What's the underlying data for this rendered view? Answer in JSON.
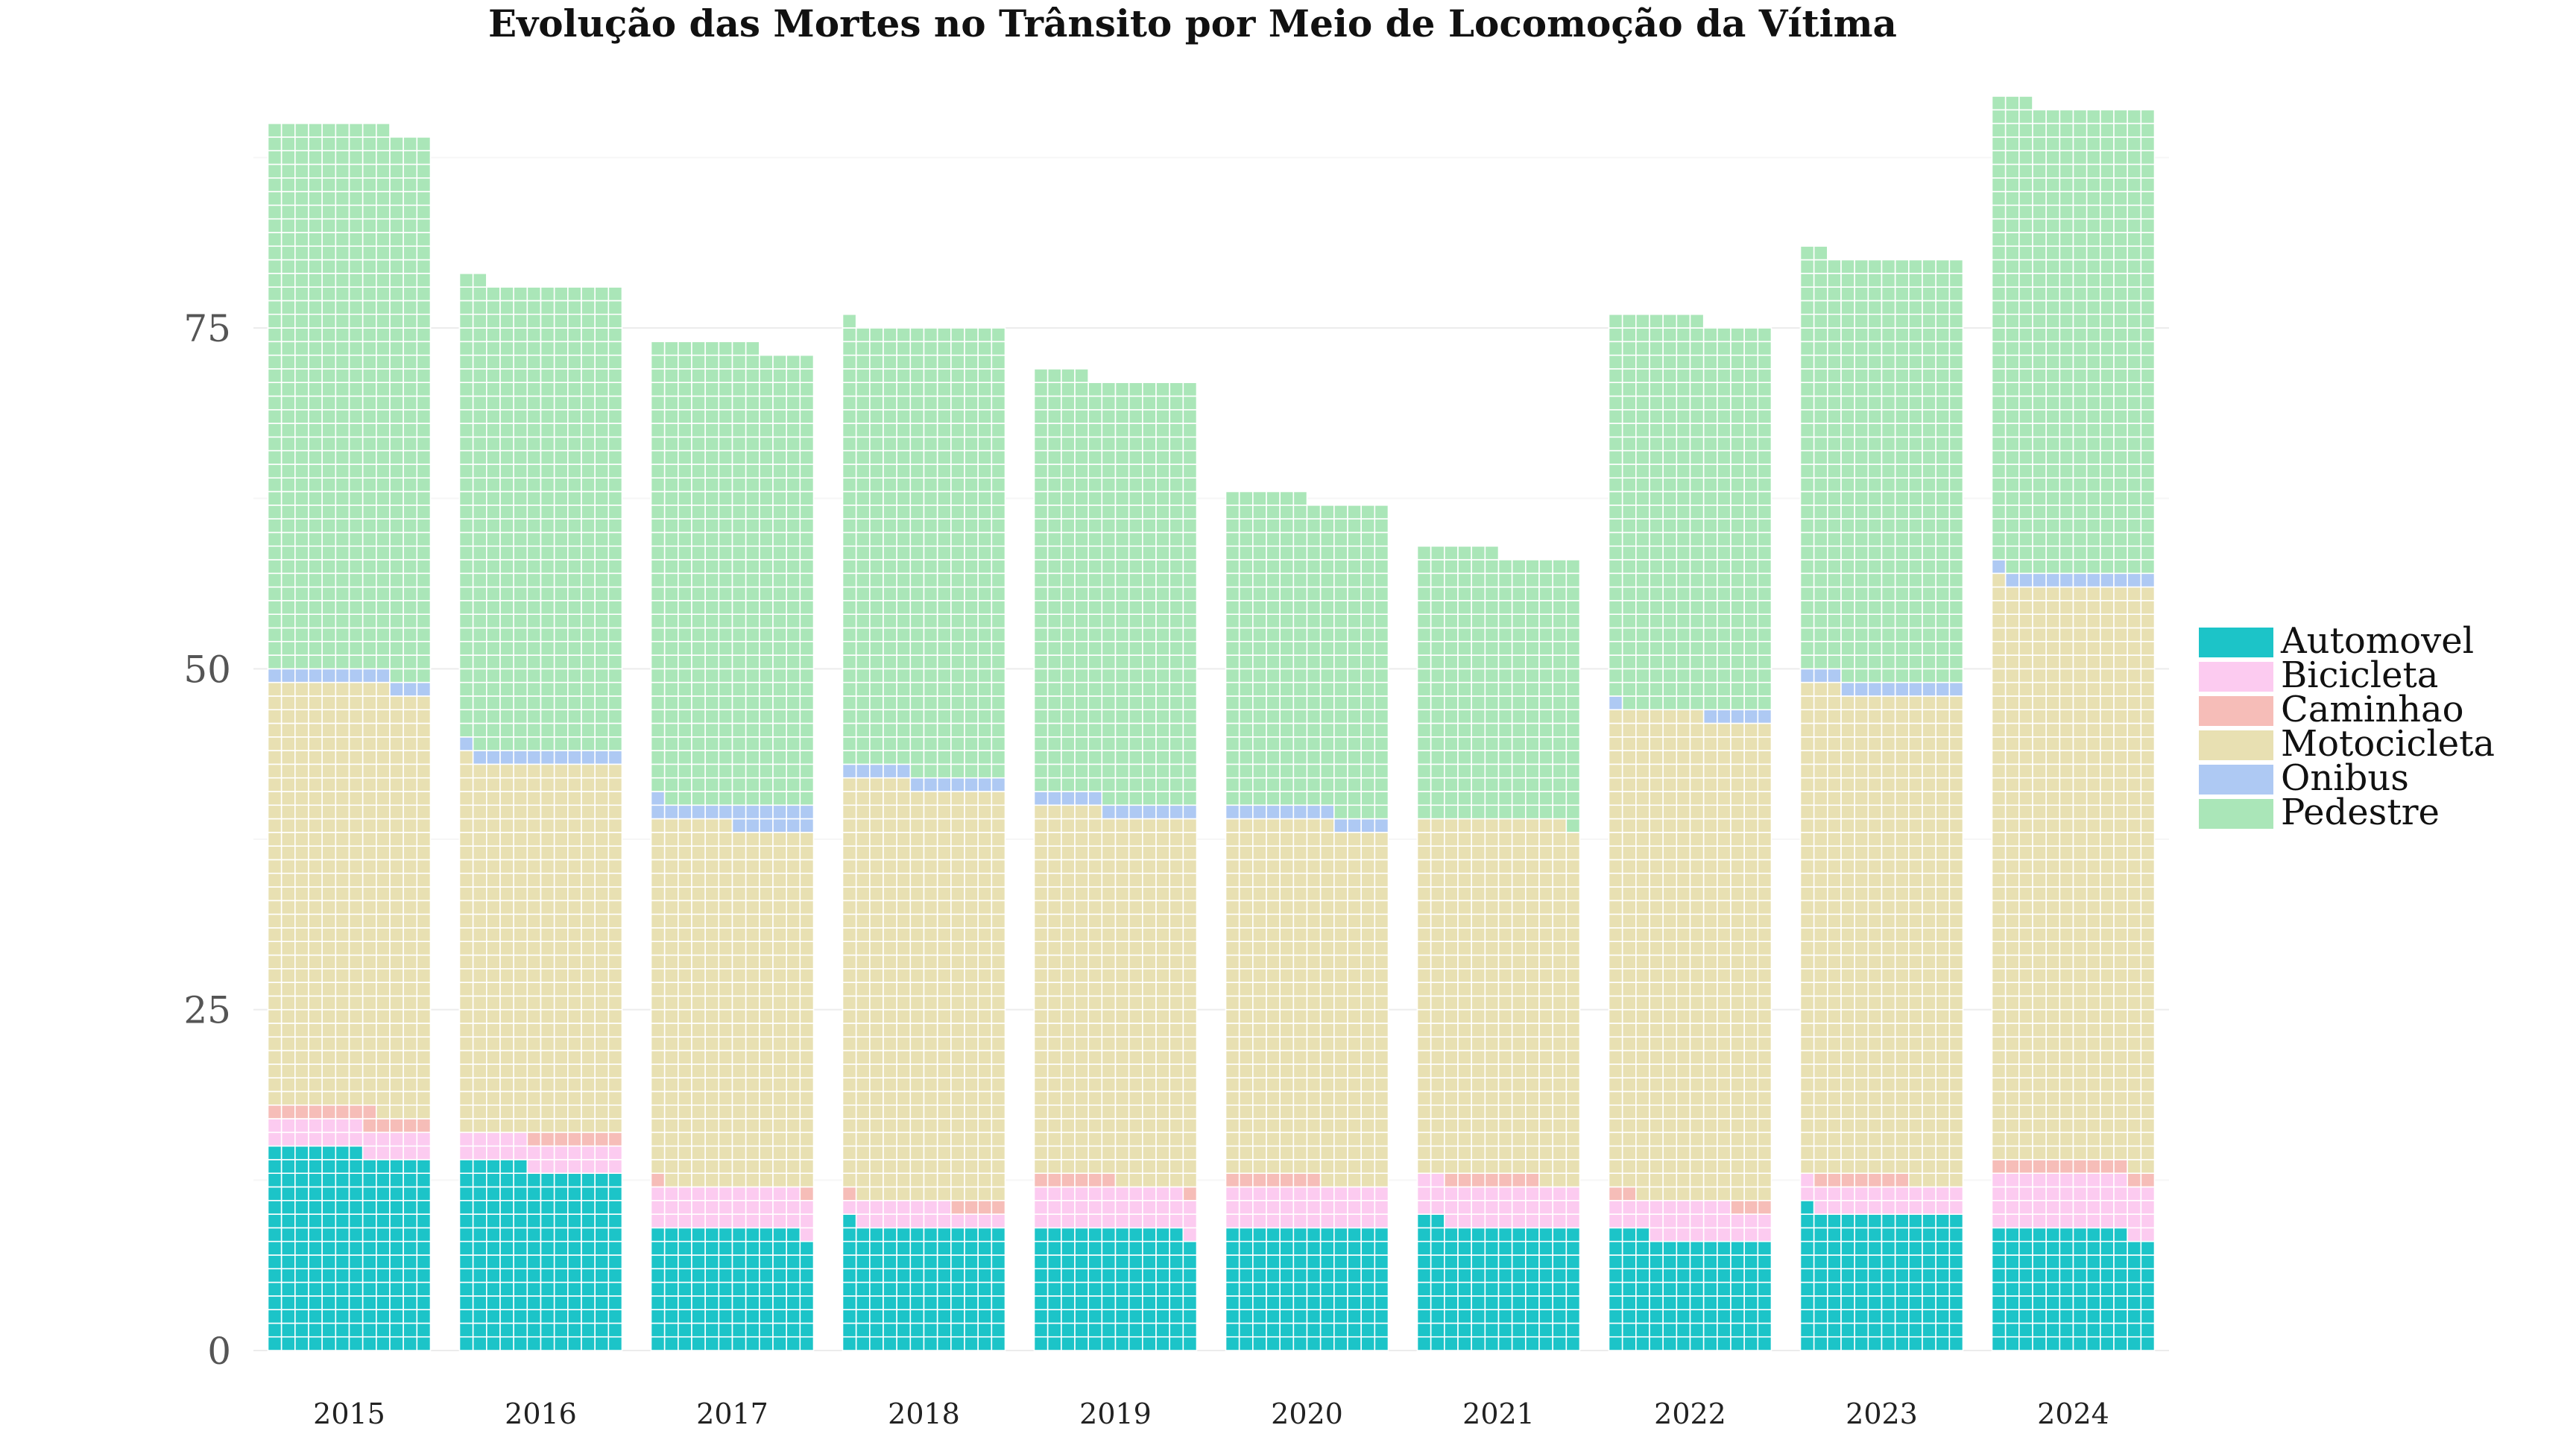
{
  "chart_data": {
    "type": "bar",
    "subtype": "stacked waffle (each cell = 1 death)",
    "title": "Evolução das Mortes no Trânsito por Meio de Locomoção da Vítima",
    "xlabel": "",
    "ylabel": "",
    "ylim": [
      0,
      90
    ],
    "yticks": [
      0,
      25,
      50,
      75
    ],
    "grid": true,
    "legend_position": "right",
    "categories": [
      "2015",
      "2016",
      "2017",
      "2018",
      "2019",
      "2020",
      "2021",
      "2022",
      "2023",
      "2024"
    ],
    "series": [
      {
        "name": "Automovel",
        "color": "#1cc4c8",
        "values": [
          175,
          161,
          107,
          109,
          107,
          108,
          110,
          99,
          121,
          106
        ]
      },
      {
        "name": "Bicicleta",
        "color": "#fccbf0",
        "values": [
          24,
          24,
          36,
          19,
          36,
          36,
          36,
          30,
          24,
          48
        ]
      },
      {
        "name": "Caminhao",
        "color": "#f6bdb8",
        "values": [
          13,
          7,
          2,
          5,
          7,
          7,
          7,
          5,
          7,
          12
        ]
      },
      {
        "name": "Motocicleta",
        "color": "#e8e0b2",
        "values": [
          373,
          325,
          317,
          364,
          323,
          313,
          314,
          425,
          427,
          507
        ]
      },
      {
        "name": "Onibus",
        "color": "#aec9f3",
        "values": [
          12,
          12,
          19,
          12,
          12,
          12,
          0,
          6,
          12,
          12
        ]
      },
      {
        "name": "Pedestre",
        "color": "#aae6b8",
        "values": [
          480,
          409,
          403,
          392,
          371,
          274,
          235,
          342,
          371,
          410
        ]
      }
    ]
  }
}
